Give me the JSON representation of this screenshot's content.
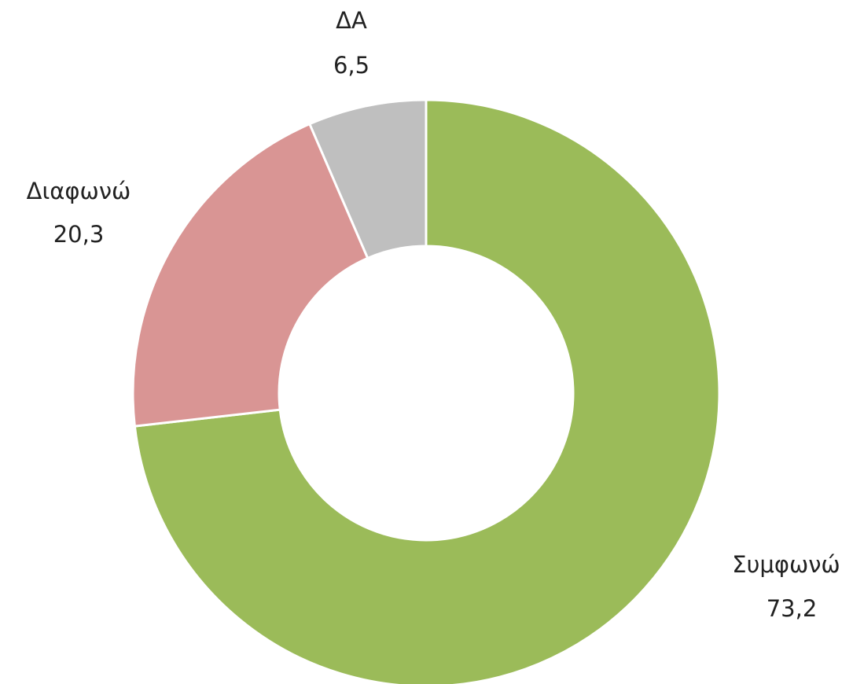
{
  "chart_data": {
    "type": "donut",
    "categories": [
      "Συμφωνώ",
      "Διαφωνώ",
      "ΔΑ"
    ],
    "values": [
      73.2,
      20.3,
      6.5
    ],
    "value_labels": [
      "73,2",
      "20,3",
      "6,5"
    ],
    "colors": [
      "#9bbb59",
      "#d99594",
      "#bfbfbf"
    ]
  }
}
